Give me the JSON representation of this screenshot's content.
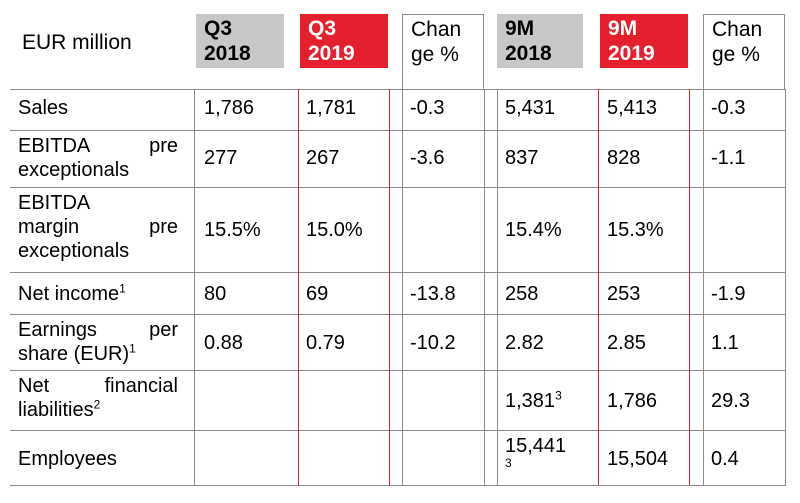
{
  "header": {
    "unit": "EUR million",
    "col_q3_2018": {
      "line1": "Q3",
      "line2": "2018"
    },
    "col_q3_2019": {
      "line1": "Q3",
      "line2": "2019"
    },
    "col_change_q3": {
      "line1": "Chan",
      "line2": "ge %"
    },
    "col_9m_2018": {
      "line1": "9M",
      "line2": "2018"
    },
    "col_9m_2019": {
      "line1": "9M",
      "line2": "2019"
    },
    "col_change_9m": {
      "line1": "Chan",
      "line2": "ge %"
    }
  },
  "rows": {
    "sales": {
      "label": "Sales",
      "q3_2018": "1,786",
      "q3_2019": "1,781",
      "chg_q3": "-0.3",
      "m9_2018": "5,431",
      "m9_2019": "5,413",
      "chg_9m": "-0.3"
    },
    "ebitda": {
      "label_words": [
        "EBITDA",
        "pre"
      ],
      "label_line2": "exceptionals",
      "q3_2018": "277",
      "q3_2019": "267",
      "chg_q3": "-3.6",
      "m9_2018": "837",
      "m9_2019": "828",
      "chg_9m": "-1.1"
    },
    "margin": {
      "label_line1": "EBITDA",
      "label_words": [
        "margin",
        "pre"
      ],
      "label_line3": "exceptionals",
      "q3_2018": "15.5%",
      "q3_2019": "15.0%",
      "chg_q3": "",
      "m9_2018": "15.4%",
      "m9_2019": "15.3%",
      "chg_9m": ""
    },
    "net_income": {
      "label": "Net income",
      "label_sup": "1",
      "q3_2018": "80",
      "q3_2019": "69",
      "chg_q3": "-13.8",
      "m9_2018": "258",
      "m9_2019": "253",
      "chg_9m": "-1.9"
    },
    "eps": {
      "label_words": [
        "Earnings",
        "per"
      ],
      "label_line2": "share (EUR)",
      "label_sup": "1",
      "q3_2018": "0.88",
      "q3_2019": "0.79",
      "chg_q3": "-10.2",
      "m9_2018": "2.82",
      "m9_2019": "2.85",
      "chg_9m": "1.1"
    },
    "nfl": {
      "label_words": [
        "Net",
        "financial"
      ],
      "label_line2": "liabilities",
      "label_sup": "2",
      "q3_2018": "",
      "q3_2019": "",
      "chg_q3": "",
      "m9_2018": "1,381",
      "m9_2018_sup": "3",
      "m9_2019": "1,786",
      "chg_9m": "29.3"
    },
    "employees": {
      "label": "Employees",
      "q3_2018": "",
      "q3_2019": "",
      "chg_q3": "",
      "m9_2018": "15,441",
      "m9_2018_sup": "3",
      "m9_2019": "15,504",
      "chg_9m": "0.4"
    }
  },
  "colors": {
    "accent_red": "#e4202e",
    "header_gray": "#c8c8c8",
    "rule_gray": "#8c8c8c"
  }
}
